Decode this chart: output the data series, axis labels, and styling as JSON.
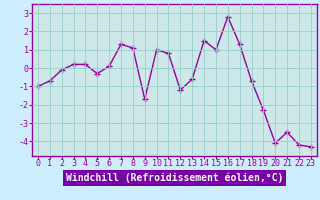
{
  "hours": [
    0,
    1,
    2,
    3,
    4,
    5,
    6,
    7,
    8,
    9,
    10,
    11,
    12,
    13,
    14,
    15,
    16,
    17,
    18,
    19,
    20,
    21,
    22,
    23
  ],
  "values": [
    -1.0,
    -0.7,
    -0.1,
    0.2,
    0.2,
    -0.3,
    0.1,
    1.3,
    1.1,
    -1.7,
    1.0,
    0.8,
    -1.2,
    -0.6,
    1.5,
    1.0,
    2.8,
    1.3,
    -0.7,
    -2.3,
    -4.1,
    -3.5,
    -4.2,
    -4.3
  ],
  "line_color": "#990099",
  "marker": "+",
  "markersize": 4,
  "linewidth": 1.0,
  "bg_color": "#cceeff",
  "plot_bg": "#cce8e8",
  "grid_color": "#99cccc",
  "spine_color": "#9900aa",
  "xlabel": "Windchill (Refroidissement éolien,°C)",
  "xlabel_fontsize": 7,
  "xlabel_bg": "#7700aa",
  "xlabel_fg": "#ffffff",
  "tick_fontsize": 6,
  "tick_color": "#9900aa",
  "ylim": [
    -4.8,
    3.5
  ],
  "yticks": [
    -4,
    -3,
    -2,
    -1,
    0,
    1,
    2,
    3
  ],
  "xlim": [
    -0.5,
    23.5
  ],
  "figsize": [
    3.2,
    2.0
  ],
  "dpi": 100
}
